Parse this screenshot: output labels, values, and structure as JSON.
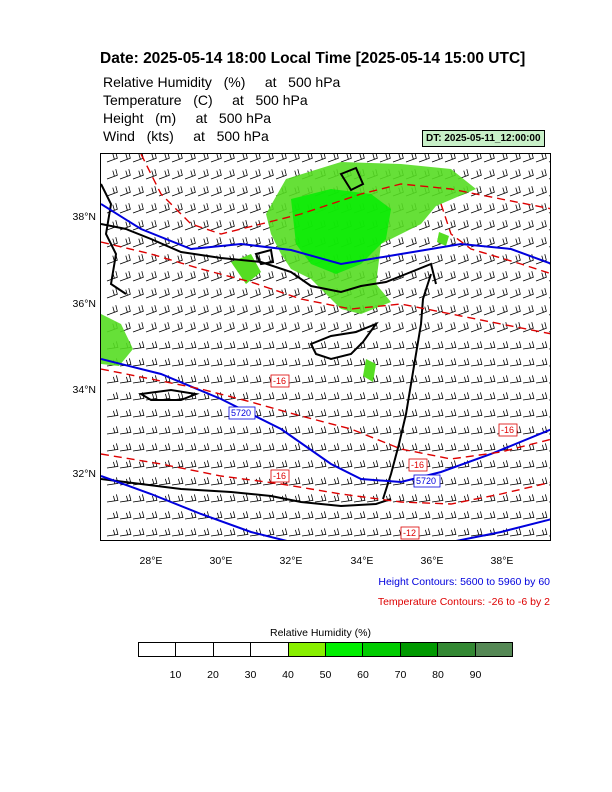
{
  "title": "Date: 2025-05-14  18:00 Local Time [2025-05-14  15:00 UTC]",
  "fields": [
    "Relative Humidity   (%)     at   500 hPa",
    "Temperature   (C)     at   500 hPa",
    "Height   (m)     at   500 hPa",
    "Wind   (kts)     at   500 hPa"
  ],
  "dt_badge": "DT: 2025-05-11_12:00:00",
  "map": {
    "lat_ticks": [
      "38°N",
      "36°N",
      "34°N",
      "32°N"
    ],
    "lon_ticks": [
      "28°E",
      "30°E",
      "32°E",
      "34°E",
      "36°E",
      "38°E"
    ],
    "height_contour_labels": [
      "5720",
      "5720"
    ],
    "temperature_contour_labels": [
      "-16",
      "-16",
      "-16",
      "-16",
      "-12"
    ],
    "colors": {
      "height": "#0000dd",
      "temperature": "#dd0000",
      "coast": "#000000",
      "rh_green": "#55dd22"
    }
  },
  "height_note": "Height Contours: 5600 to 5960 by 60",
  "temp_note": "Temperature Contours: -26 to -6 by 2",
  "colorbar": {
    "title": "Relative Humidity  (%)",
    "colors": [
      "#ffffff",
      "#ffffff",
      "#ffffff",
      "#ffffff",
      "#88ee00",
      "#00ee00",
      "#00cc00",
      "#009900",
      "#338833",
      "#558855"
    ],
    "labels": [
      "10",
      "20",
      "30",
      "40",
      "50",
      "60",
      "70",
      "80",
      "90"
    ]
  }
}
